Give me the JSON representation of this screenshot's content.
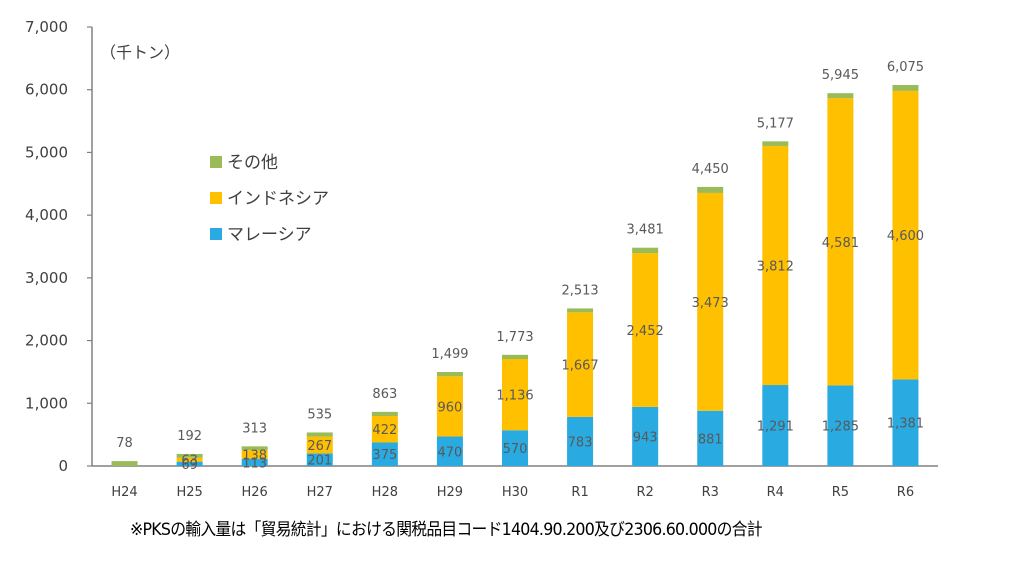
{
  "chart_data": {
    "type": "bar",
    "stacked": true,
    "title": "",
    "unit_label": "（千トン）",
    "xlabel": "",
    "ylabel": "",
    "ylim": [
      0,
      7000
    ],
    "yticks": [
      0,
      1000,
      2000,
      3000,
      4000,
      5000,
      6000,
      7000
    ],
    "ytick_labels": [
      "0",
      "1,000",
      "2,000",
      "3,000",
      "4,000",
      "5,000",
      "6,000",
      "7,000"
    ],
    "grid": false,
    "legend_position": "upper-left-inside",
    "categories": [
      "H24",
      "H25",
      "H26",
      "H27",
      "H28",
      "H29",
      "H30",
      "R1",
      "R2",
      "R3",
      "R4",
      "R5",
      "R6"
    ],
    "series": [
      {
        "name": "マレーシア",
        "color": "#29abe2",
        "values": [
          0,
          69,
          113,
          201,
          375,
          470,
          570,
          783,
          943,
          881,
          1291,
          1285,
          1381
        ],
        "labels": [
          "",
          "69",
          "113",
          "201",
          "375",
          "470",
          "570",
          "783",
          "943",
          "881",
          "1,291",
          "1,285",
          "1,381"
        ]
      },
      {
        "name": "インドネシア",
        "color": "#ffc000",
        "values": [
          0,
          63,
          138,
          267,
          422,
          960,
          1136,
          1667,
          2452,
          3473,
          3812,
          4581,
          4600
        ],
        "labels": [
          "",
          "63",
          "138",
          "267",
          "422",
          "960",
          "1,136",
          "1,667",
          "2,452",
          "3,473",
          "3,812",
          "4,581",
          "4,600"
        ]
      },
      {
        "name": "その他",
        "color": "#9bbb59",
        "values": [
          78,
          60,
          62,
          67,
          66,
          69,
          67,
          63,
          86,
          96,
          74,
          79,
          94
        ],
        "labels": [
          "",
          "",
          "",
          "",
          "",
          "",
          "",
          "",
          "",
          "",
          "",
          "",
          ""
        ]
      }
    ],
    "totals": [
      78,
      192,
      313,
      535,
      863,
      1499,
      1773,
      2513,
      3481,
      4450,
      5177,
      5945,
      6075
    ],
    "total_labels": [
      "78",
      "192",
      "313",
      "535",
      "863",
      "1,499",
      "1,773",
      "2,513",
      "3,481",
      "4,450",
      "5,177",
      "5,945",
      "6,075"
    ],
    "legend_order": [
      "その他",
      "インドネシア",
      "マレーシア"
    ]
  },
  "footnote": "※PKSの輸入量は「貿易統計」における関税品目コード1404.90.200及び2306.60.000の合計"
}
